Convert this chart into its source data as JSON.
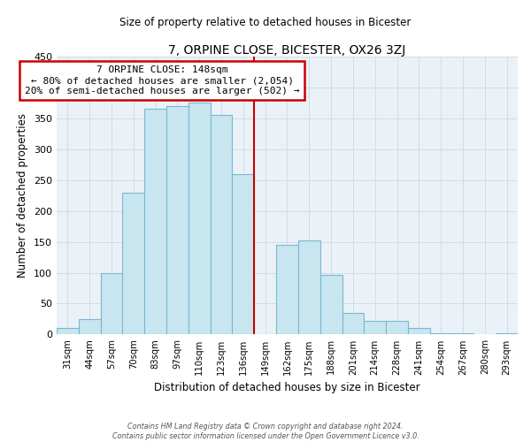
{
  "title": "7, ORPINE CLOSE, BICESTER, OX26 3ZJ",
  "subtitle": "Size of property relative to detached houses in Bicester",
  "xlabel": "Distribution of detached houses by size in Bicester",
  "ylabel": "Number of detached properties",
  "bin_labels": [
    "31sqm",
    "44sqm",
    "57sqm",
    "70sqm",
    "83sqm",
    "97sqm",
    "110sqm",
    "123sqm",
    "136sqm",
    "149sqm",
    "162sqm",
    "175sqm",
    "188sqm",
    "201sqm",
    "214sqm",
    "228sqm",
    "241sqm",
    "254sqm",
    "267sqm",
    "280sqm",
    "293sqm"
  ],
  "bin_values": [
    10,
    25,
    100,
    230,
    365,
    370,
    375,
    355,
    260,
    0,
    145,
    153,
    97,
    35,
    22,
    22,
    11,
    2,
    2,
    0,
    2
  ],
  "bar_color": "#c8e6f0",
  "bar_edge_color": "#7ab8d0",
  "property_line_label": "7 ORPINE CLOSE: 148sqm",
  "smaller_pct": "80%",
  "smaller_count": "2,054",
  "larger_pct": "20%",
  "larger_count": "502",
  "ylim": [
    0,
    450
  ],
  "footer1": "Contains HM Land Registry data © Crown copyright and database right 2024.",
  "footer2": "Contains public sector information licensed under the Open Government Licence v3.0.",
  "annotation_box_color": "#ffffff",
  "annotation_box_edge": "#cc0000",
  "vline_color": "#cc0000",
  "grid_color": "#d0dce8",
  "background_color": "#eaf2f8"
}
